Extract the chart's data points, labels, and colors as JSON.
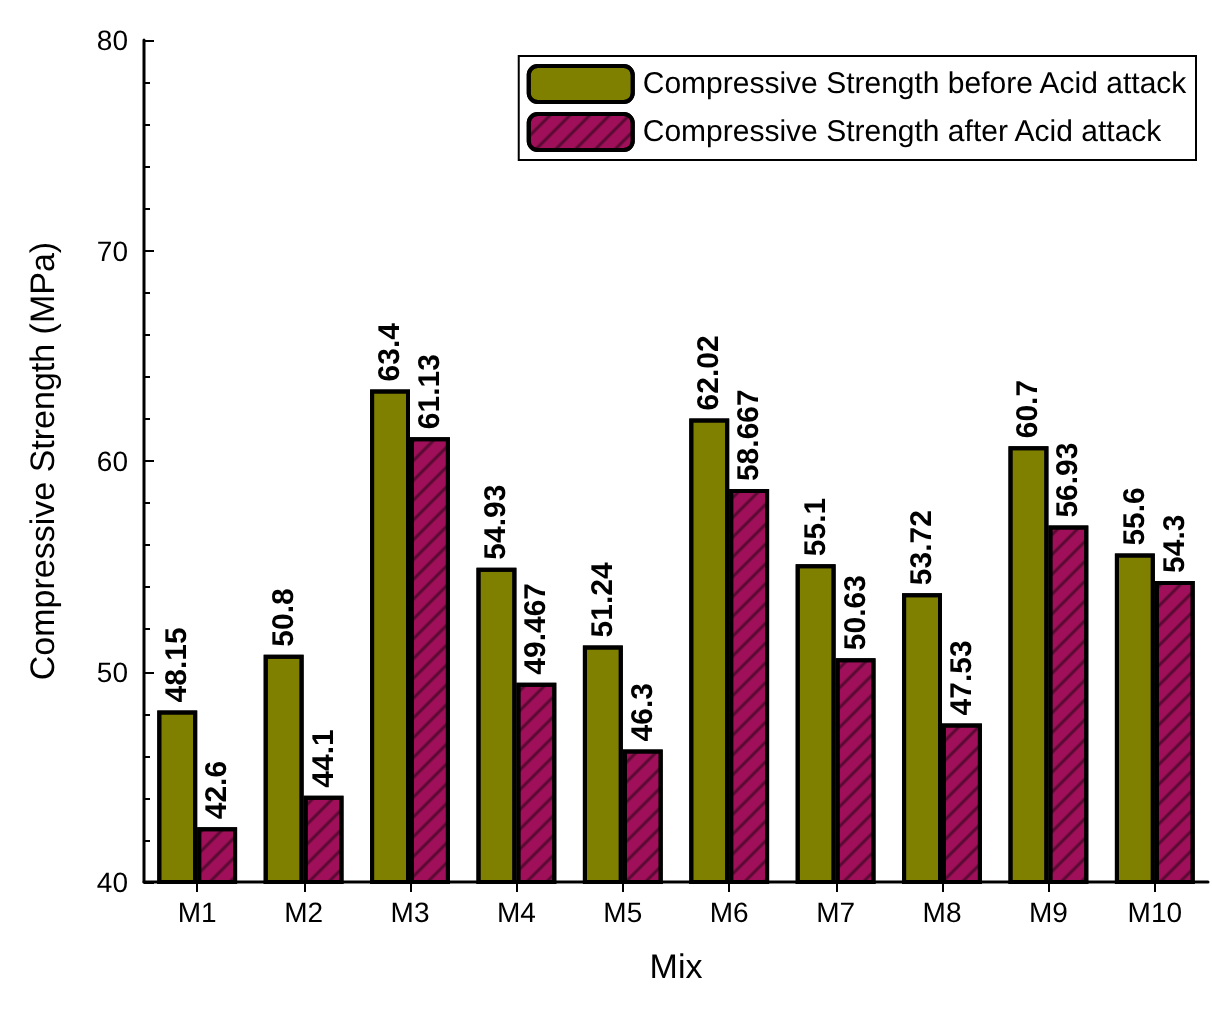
{
  "chart_data": {
    "type": "bar",
    "xlabel": "Mix",
    "ylabel": "Compressive Strength (MPa)",
    "categories": [
      "M1",
      "M2",
      "M3",
      "M4",
      "M5",
      "M6",
      "M7",
      "M8",
      "M9",
      "M10"
    ],
    "series": [
      {
        "name": "Compressive Strength before Acid attack",
        "color": "#808000",
        "values": [
          48.15,
          50.8,
          63.4,
          54.93,
          51.24,
          62.02,
          55.1,
          53.72,
          60.7,
          55.6
        ]
      },
      {
        "name": "Compressive Strength after Acid attack",
        "color": "#a0105a",
        "values": [
          42.6,
          44.1,
          61.13,
          49.467,
          46.3,
          58.667,
          50.63,
          47.53,
          56.93,
          54.3
        ]
      }
    ],
    "ylim": [
      40,
      80
    ],
    "yticks": [
      40,
      50,
      60,
      70,
      80
    ],
    "grid": false,
    "legend": "top right",
    "data_labels": true
  }
}
